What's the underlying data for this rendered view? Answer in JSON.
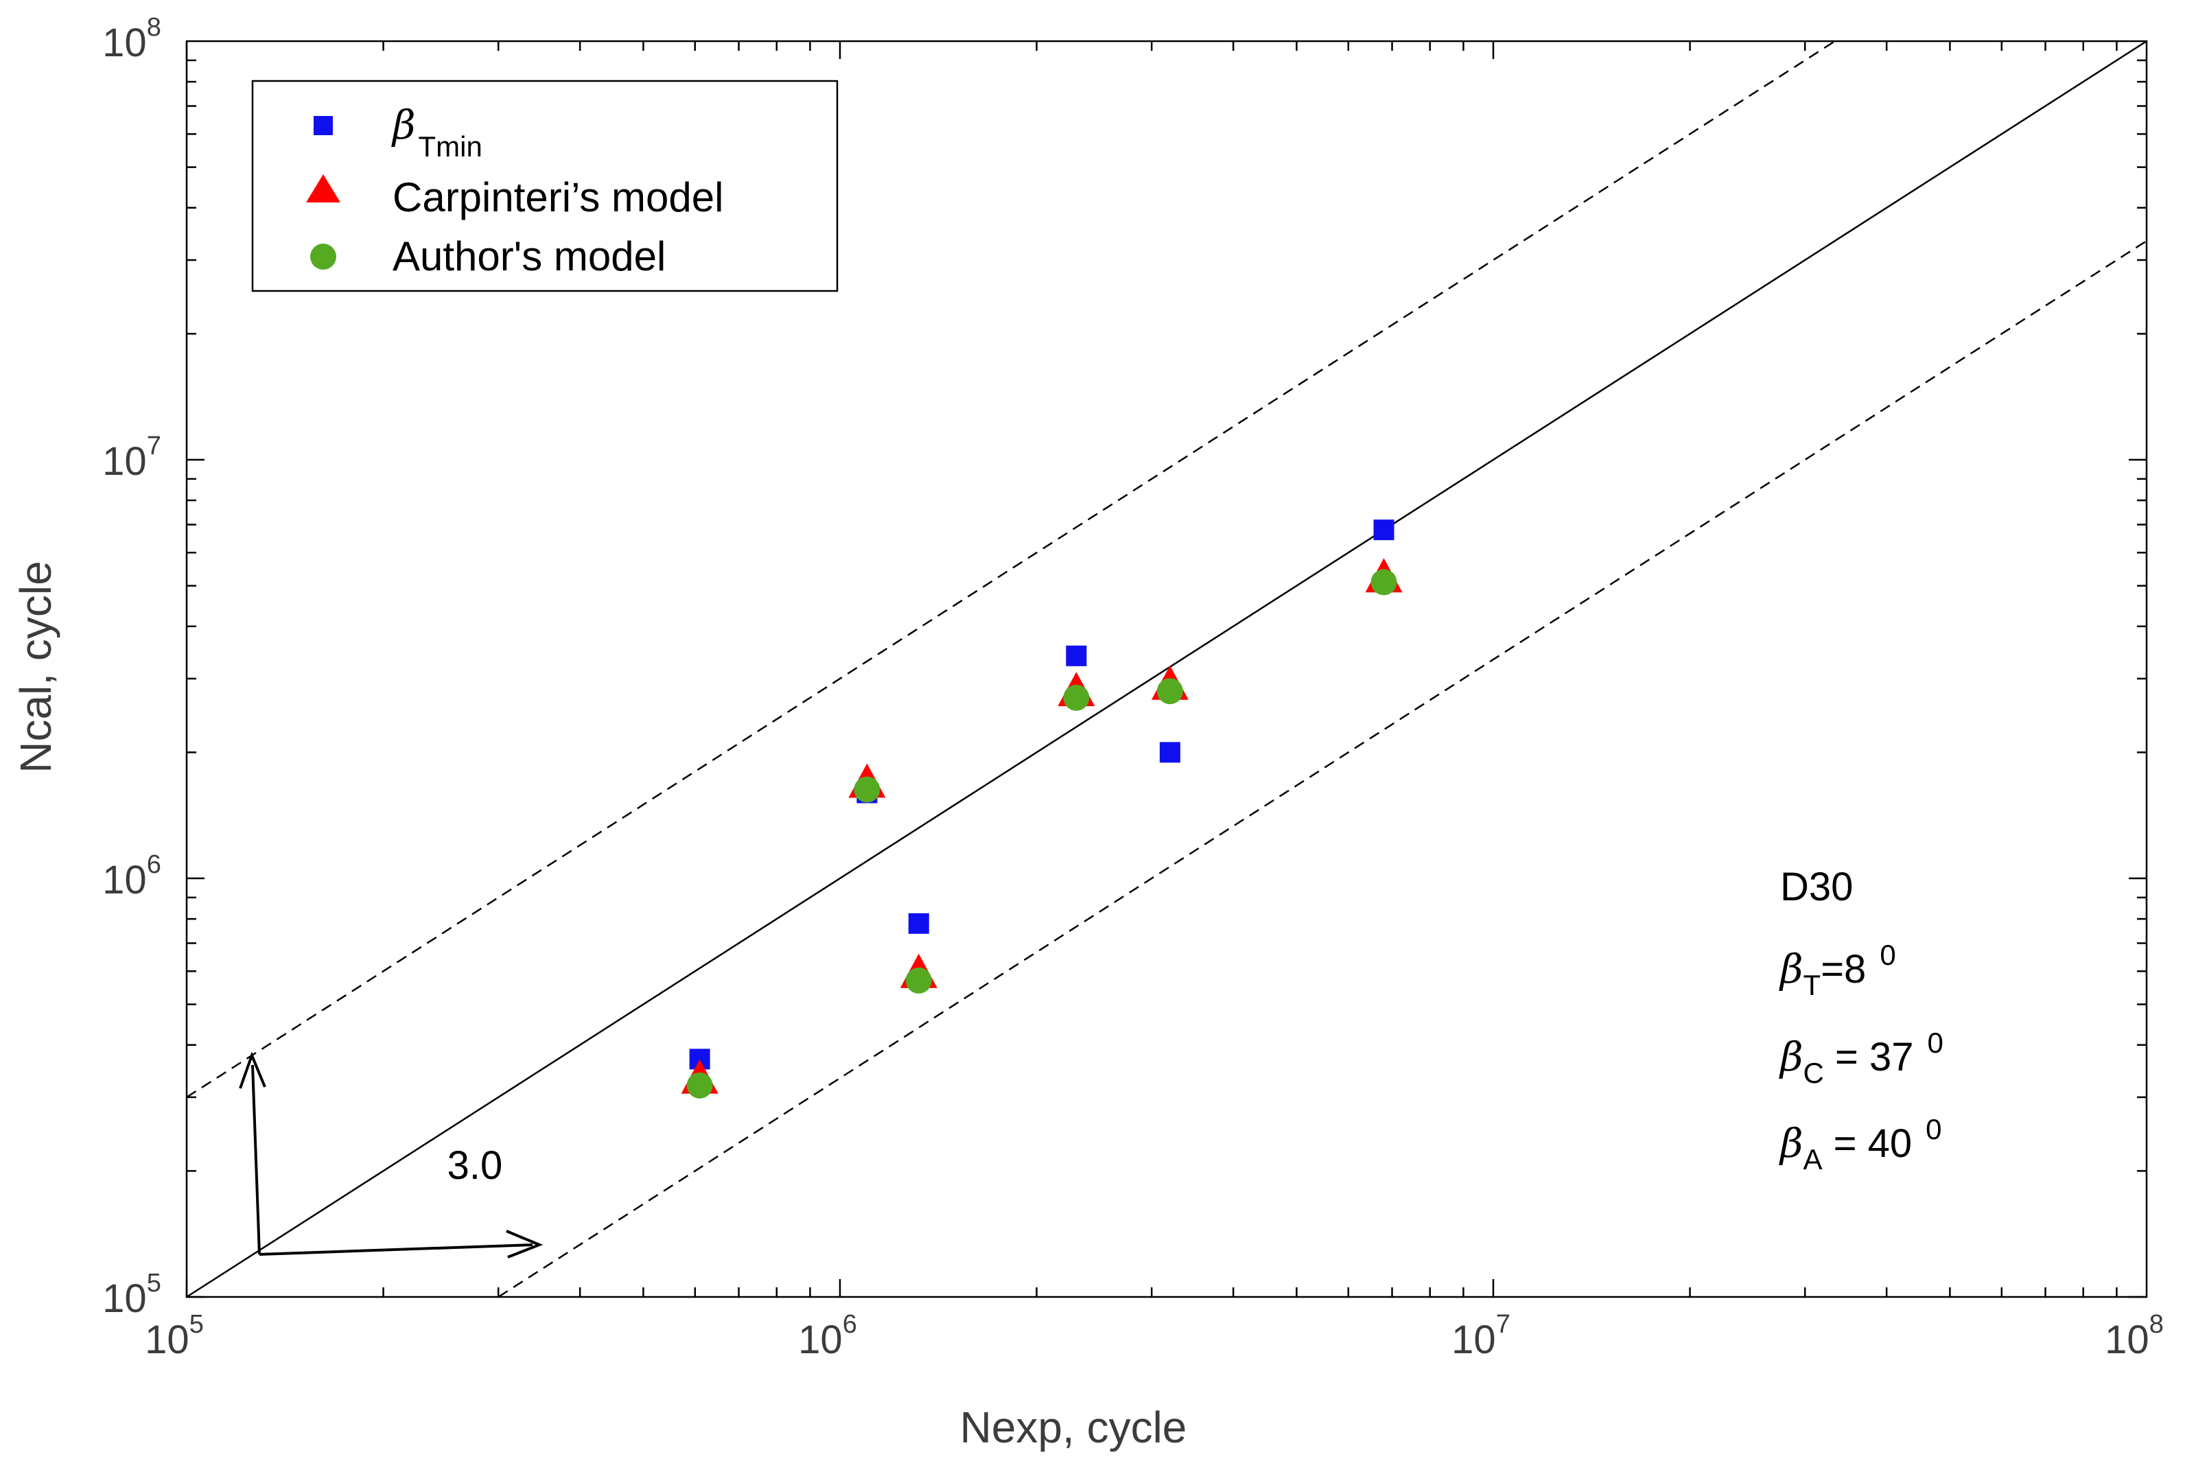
{
  "chart_data": {
    "type": "scatter",
    "title": "",
    "xlabel": "Nexp, cycle",
    "ylabel": "Ncal, cycle",
    "xscale": "log",
    "yscale": "log",
    "xlim": [
      100000,
      100000000
    ],
    "ylim": [
      100000,
      100000000
    ],
    "x_ticks": [
      {
        "base": "10",
        "exp": "5",
        "value": 100000
      },
      {
        "base": "10",
        "exp": "6",
        "value": 1000000
      },
      {
        "base": "10",
        "exp": "7",
        "value": 10000000
      },
      {
        "base": "10",
        "exp": "8",
        "value": 100000000
      }
    ],
    "y_ticks": [
      {
        "base": "10",
        "exp": "5",
        "value": 100000
      },
      {
        "base": "10",
        "exp": "6",
        "value": 1000000
      },
      {
        "base": "10",
        "exp": "7",
        "value": 10000000
      },
      {
        "base": "10",
        "exp": "8",
        "value": 100000000
      }
    ],
    "legend_position": "top-left",
    "series": [
      {
        "name": "βTmin",
        "name_symbol": "β",
        "name_sub": "Tmin",
        "marker": "square",
        "color": "#1010ee",
        "points": [
          {
            "x": 610000,
            "y": 370000
          },
          {
            "x": 1100000,
            "y": 1600000
          },
          {
            "x": 1320000,
            "y": 780000
          },
          {
            "x": 2300000,
            "y": 3400000
          },
          {
            "x": 3200000,
            "y": 2000000
          },
          {
            "x": 6800000,
            "y": 6800000
          }
        ]
      },
      {
        "name": "Carpinteri’s model",
        "marker": "triangle",
        "color": "#ff0000",
        "points": [
          {
            "x": 610000,
            "y": 330000
          },
          {
            "x": 1100000,
            "y": 1680000
          },
          {
            "x": 1320000,
            "y": 590000
          },
          {
            "x": 2300000,
            "y": 2780000
          },
          {
            "x": 3200000,
            "y": 2880000
          },
          {
            "x": 6800000,
            "y": 5200000
          }
        ]
      },
      {
        "name": "Author's model",
        "marker": "circle",
        "color": "#55aa22",
        "points": [
          {
            "x": 610000,
            "y": 320000
          },
          {
            "x": 1100000,
            "y": 1630000
          },
          {
            "x": 1320000,
            "y": 570000
          },
          {
            "x": 2300000,
            "y": 2700000
          },
          {
            "x": 3200000,
            "y": 2800000
          },
          {
            "x": 6800000,
            "y": 5100000
          }
        ]
      }
    ],
    "reference_lines": [
      {
        "name": "y = x",
        "style": "solid",
        "factor": 1
      },
      {
        "name": "y = 3x",
        "style": "dashed",
        "factor": 3
      },
      {
        "name": "y = x/3",
        "style": "dashed",
        "factor": 0.3333
      }
    ],
    "scatter_band_label": "3.0",
    "annotations": {
      "specimen": "D30",
      "angles": [
        {
          "symbol": "β",
          "sub": "T",
          "text": "=8",
          "sup": "0"
        },
        {
          "symbol": "β",
          "sub": "C",
          "text": " = 37",
          "sup": "0"
        },
        {
          "symbol": "β",
          "sub": "A",
          "text": " = 40",
          "sup": "0"
        }
      ]
    }
  }
}
